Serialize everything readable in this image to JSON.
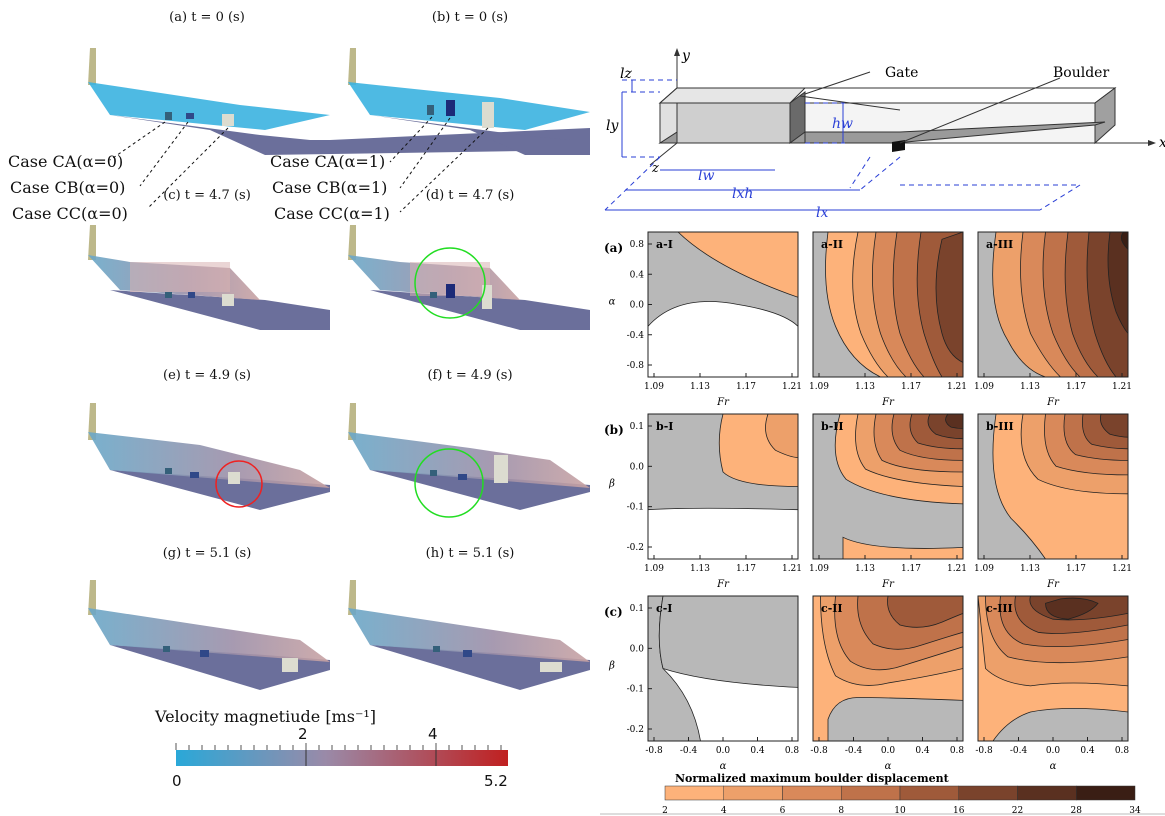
{
  "left": {
    "captions": [
      "(a) t = 0 (s)",
      "(b) t = 0 (s)",
      "(c) t = 4.7 (s)",
      "(d) t = 4.7 (s)",
      "(e) t = 4.9 (s)",
      "(f) t = 4.9 (s)",
      "(g) t = 5.1 (s)",
      "(h) t = 5.1 (s)"
    ],
    "cases_alpha0": [
      "Case CA(α=0)",
      "Case CB(α=0)",
      "Case CC(α=0)"
    ],
    "cases_alpha1": [
      "Case CA(α=1)",
      "Case CB(α=1)",
      "Case CC(α=1)"
    ],
    "colorbar": {
      "title": "Velocity magnetiude [ms⁻¹]",
      "min_label": "0",
      "max_label": "5.2",
      "tick_labels": [
        "2",
        "4"
      ],
      "colors": [
        "#2aa8d8",
        "#9a8aa8",
        "#c02020"
      ]
    }
  },
  "schematic": {
    "labels": {
      "y": "y",
      "x": "x",
      "z": "z",
      "lz": "lz",
      "ly": "ly",
      "hw": "hw",
      "lw": "lw",
      "lxh": "lxh",
      "lx": "lx",
      "gate": "Gate",
      "boulder": "Boulder"
    }
  },
  "chart_data": {
    "type": "contour",
    "row_labels": [
      "(a)",
      "(b)",
      "(c)"
    ],
    "panels": [
      {
        "id": "a-I",
        "xlabel": "Fr",
        "ylabel": "α",
        "xticks": [
          "1.09",
          "1.13",
          "1.17",
          "1.21"
        ],
        "yticks": [
          "0.8",
          "0.4",
          "0.0",
          "-0.4",
          "-0.8"
        ]
      },
      {
        "id": "a-II",
        "xlabel": "Fr",
        "xticks": [
          "1.09",
          "1.13",
          "1.17",
          "1.21"
        ]
      },
      {
        "id": "a-III",
        "xlabel": "Fr",
        "xticks": [
          "1.09",
          "1.13",
          "1.17",
          "1.21"
        ]
      },
      {
        "id": "b-I",
        "xlabel": "Fr",
        "ylabel": "β",
        "xticks": [
          "1.09",
          "1.13",
          "1.17",
          "1.21"
        ],
        "yticks": [
          "0.1",
          "0.0",
          "-0.1",
          "-0.2"
        ]
      },
      {
        "id": "b-II",
        "xlabel": "Fr",
        "xticks": [
          "1.09",
          "1.13",
          "1.17",
          "1.21"
        ]
      },
      {
        "id": "b-III",
        "xlabel": "Fr",
        "xticks": [
          "1.09",
          "1.13",
          "1.17",
          "1.21"
        ]
      },
      {
        "id": "c-I",
        "xlabel": "α",
        "ylabel": "β",
        "xticks": [
          "-0.8",
          "-0.4",
          "0.0",
          "0.4",
          "0.8"
        ],
        "yticks": [
          "0.1",
          "0.0",
          "-0.1",
          "-0.2"
        ]
      },
      {
        "id": "c-II",
        "xlabel": "α",
        "xticks": [
          "-0.8",
          "-0.4",
          "0.0",
          "0.4",
          "0.8"
        ]
      },
      {
        "id": "c-III",
        "xlabel": "α",
        "xticks": [
          "-0.8",
          "-0.4",
          "0.0",
          "0.4",
          "0.8"
        ]
      }
    ],
    "colorbar": {
      "title": "Normalized maximum boulder displacement",
      "levels": [
        "2",
        "4",
        "6",
        "8",
        "10",
        "16",
        "22",
        "28",
        "34"
      ],
      "colors": [
        "#fdb27a",
        "#eda06a",
        "#d9895a",
        "#bf724a",
        "#9f5a3a",
        "#7a432c",
        "#5a3020",
        "#3a1e14",
        "#0e0806"
      ]
    },
    "below_level_color": "#b8b8b8"
  }
}
